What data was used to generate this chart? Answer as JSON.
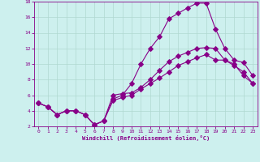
{
  "xlabel": "Windchill (Refroidissement éolien,°C)",
  "background_color": "#cdf0ee",
  "grid_color": "#b0d8d0",
  "line_color": "#880088",
  "xlim": [
    -0.5,
    23.5
  ],
  "ylim": [
    2,
    18
  ],
  "xticks": [
    0,
    1,
    2,
    3,
    4,
    5,
    6,
    7,
    8,
    9,
    10,
    11,
    12,
    13,
    14,
    15,
    16,
    17,
    18,
    19,
    20,
    21,
    22,
    23
  ],
  "yticks": [
    2,
    4,
    6,
    8,
    10,
    12,
    14,
    16,
    18
  ],
  "line1_x": [
    0,
    1,
    2,
    3,
    4,
    5,
    6,
    7,
    8,
    9,
    10,
    11,
    12,
    13,
    14,
    15,
    16,
    17,
    18,
    19,
    20,
    21,
    22,
    23
  ],
  "line1_y": [
    5.0,
    4.5,
    3.5,
    4.0,
    4.0,
    3.5,
    2.2,
    2.7,
    6.0,
    6.2,
    6.3,
    7.0,
    8.0,
    9.2,
    10.3,
    11.0,
    11.5,
    12.0,
    12.1,
    12.0,
    10.5,
    10.0,
    8.5,
    7.5
  ],
  "line2_x": [
    0,
    1,
    2,
    3,
    4,
    5,
    6,
    7,
    8,
    9,
    10,
    11,
    12,
    13,
    14,
    15,
    16,
    17,
    18,
    19,
    20,
    21,
    22,
    23
  ],
  "line2_y": [
    5.0,
    4.5,
    3.5,
    4.0,
    4.0,
    3.5,
    2.2,
    2.7,
    5.5,
    6.0,
    7.5,
    10.0,
    12.0,
    13.5,
    15.8,
    16.5,
    17.2,
    17.8,
    17.8,
    14.5,
    12.0,
    10.5,
    10.2,
    8.5
  ],
  "line3_x": [
    0,
    1,
    2,
    3,
    4,
    5,
    6,
    7,
    8,
    9,
    10,
    11,
    12,
    13,
    14,
    15,
    16,
    17,
    18,
    19,
    20,
    21,
    22,
    23
  ],
  "line3_y": [
    5.0,
    4.5,
    3.5,
    4.0,
    4.0,
    3.5,
    2.2,
    2.7,
    5.3,
    5.7,
    6.0,
    6.8,
    7.5,
    8.2,
    9.0,
    9.8,
    10.3,
    10.8,
    11.2,
    10.5,
    10.5,
    9.8,
    9.0,
    7.5
  ]
}
